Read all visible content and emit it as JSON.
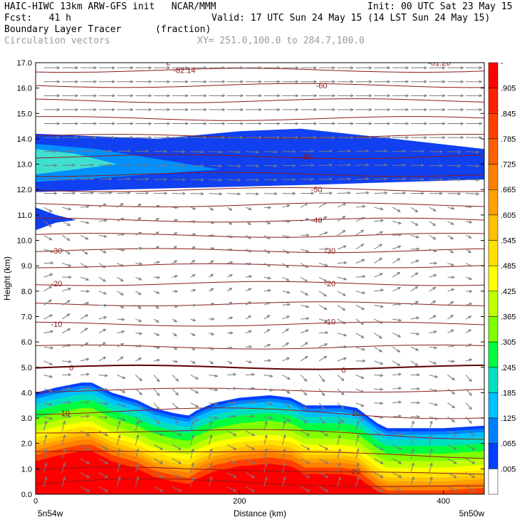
{
  "header": {
    "model_line": "HAIC-HIWC 13km ARW-GFS init   NCAR/MMM",
    "init_line": "Init: 00 UTC Sat 23 May 15",
    "fcst_line": "Fcst:   41 h",
    "valid_line": "Valid: 17 UTC Sun 24 May 15 (14 LST Sun 24 May 15)",
    "field_name": "Boundary Layer Tracer",
    "field_units": "(fraction)",
    "vector_label": "Circulation vectors",
    "section_coords": "XY= 251.0,100.0 to 284.7,100.0"
  },
  "chart_data": {
    "type": "cross-section",
    "ylabel": "Height (km)",
    "xlabel": "Distance (km)",
    "xlim": [
      0,
      440
    ],
    "ylim": [
      0,
      17
    ],
    "x_ticks": [
      0,
      200,
      400
    ],
    "y_ticks": [
      "0.0",
      "1.0",
      "2.0",
      "3.0",
      "4.0",
      "5.0",
      "6.0",
      "7.0",
      "8.0",
      "9.0",
      "10.0",
      "11.0",
      "12.0",
      "13.0",
      "14.0",
      "15.0",
      "16.0",
      "17.0"
    ],
    "x_endpoint_labels": {
      "left": "5n54w",
      "right": "5n50w"
    },
    "colorbar": {
      "labels": [
        "-",
        ".905",
        ".845",
        ".785",
        ".725",
        ".665",
        ".605",
        ".545",
        ".485",
        ".425",
        ".365",
        ".305",
        ".245",
        ".185",
        ".125",
        ".065",
        ".005"
      ],
      "colors": [
        "#ff0000",
        "#ff2000",
        "#ff4000",
        "#ff6000",
        "#ff8000",
        "#ffa000",
        "#ffc000",
        "#ffe000",
        "#ffff00",
        "#c0ff00",
        "#80ff00",
        "#00ff40",
        "#00e0c0",
        "#00c0ff",
        "#0080ff",
        "#0040ff",
        "#ffffff"
      ]
    },
    "contour_labels": [
      {
        "text": "-82.14",
        "x": 135,
        "y": 16.7
      },
      {
        "text": "-81.26",
        "x": 385,
        "y": 17.0
      },
      {
        "text": "-60",
        "x": 275,
        "y": 16.1
      },
      {
        "text": "-60",
        "x": 260,
        "y": 13.3
      },
      {
        "text": "-50",
        "x": 270,
        "y": 12.0
      },
      {
        "text": "-40",
        "x": 270,
        "y": 10.8
      },
      {
        "text": "-30",
        "x": 15,
        "y": 9.6
      },
      {
        "text": "-30",
        "x": 283,
        "y": 9.6
      },
      {
        "text": "-20",
        "x": 15,
        "y": 8.3
      },
      {
        "text": "-20",
        "x": 283,
        "y": 8.3
      },
      {
        "text": "-10",
        "x": 15,
        "y": 6.7
      },
      {
        "text": "-10",
        "x": 283,
        "y": 6.8
      },
      {
        "text": "0",
        "x": 33,
        "y": 5.0
      },
      {
        "text": "0",
        "x": 300,
        "y": 4.9
      },
      {
        "text": "10",
        "x": 25,
        "y": 3.2
      },
      {
        "text": "10",
        "x": 310,
        "y": 3.2
      },
      {
        "text": "20",
        "x": 310,
        "y": 0.9
      }
    ],
    "low_marker": {
      "text": "L",
      "x": 128,
      "y": 16.9
    },
    "tracer_upper_band": {
      "outer_top": [
        [
          0,
          14.2
        ],
        [
          60,
          14.1
        ],
        [
          120,
          14.0
        ],
        [
          200,
          14.3
        ],
        [
          260,
          14.4
        ],
        [
          330,
          14.1
        ],
        [
          440,
          13.6
        ]
      ],
      "outer_bottom": [
        [
          0,
          11.9
        ],
        [
          80,
          12.0
        ],
        [
          180,
          12.1
        ],
        [
          280,
          12.2
        ],
        [
          360,
          12.3
        ],
        [
          440,
          12.4
        ]
      ],
      "mid_top": [
        [
          0,
          13.8
        ],
        [
          60,
          13.6
        ],
        [
          120,
          13.2
        ],
        [
          180,
          12.8
        ]
      ],
      "mid_bottom": [
        [
          0,
          12.3
        ],
        [
          80,
          12.5
        ],
        [
          180,
          12.8
        ]
      ],
      "core_top": [
        [
          0,
          13.6
        ],
        [
          40,
          13.4
        ],
        [
          80,
          13.0
        ]
      ],
      "core_bottom": [
        [
          0,
          12.6
        ],
        [
          40,
          12.8
        ],
        [
          80,
          13.0
        ]
      ]
    },
    "tracer_small_blob": [
      [
        0,
        11.3
      ],
      [
        20,
        11.0
      ],
      [
        40,
        10.8
      ],
      [
        20,
        10.7
      ],
      [
        0,
        10.4
      ]
    ],
    "tracer_boundary_top": [
      [
        0,
        4.0
      ],
      [
        20,
        4.2
      ],
      [
        45,
        4.4
      ],
      [
        55,
        4.4
      ],
      [
        75,
        4.0
      ],
      [
        100,
        3.7
      ],
      [
        115,
        3.4
      ],
      [
        135,
        3.2
      ],
      [
        150,
        3.1
      ],
      [
        158,
        3.3
      ],
      [
        175,
        3.6
      ],
      [
        200,
        3.8
      ],
      [
        230,
        3.9
      ],
      [
        250,
        3.8
      ],
      [
        265,
        3.5
      ],
      [
        300,
        3.5
      ],
      [
        315,
        3.4
      ],
      [
        335,
        2.8
      ],
      [
        345,
        2.6
      ],
      [
        400,
        2.6
      ],
      [
        440,
        2.7
      ]
    ],
    "isotherm_heights_km": [
      0.4,
      0.9,
      1.6,
      2.4,
      3.2,
      4.1,
      5.0,
      5.8,
      6.7,
      7.5,
      8.3,
      9.0,
      9.6,
      10.2,
      10.8,
      11.4,
      12.0,
      12.6,
      13.3,
      14.1,
      14.8,
      15.5,
      16.1,
      16.7
    ]
  }
}
